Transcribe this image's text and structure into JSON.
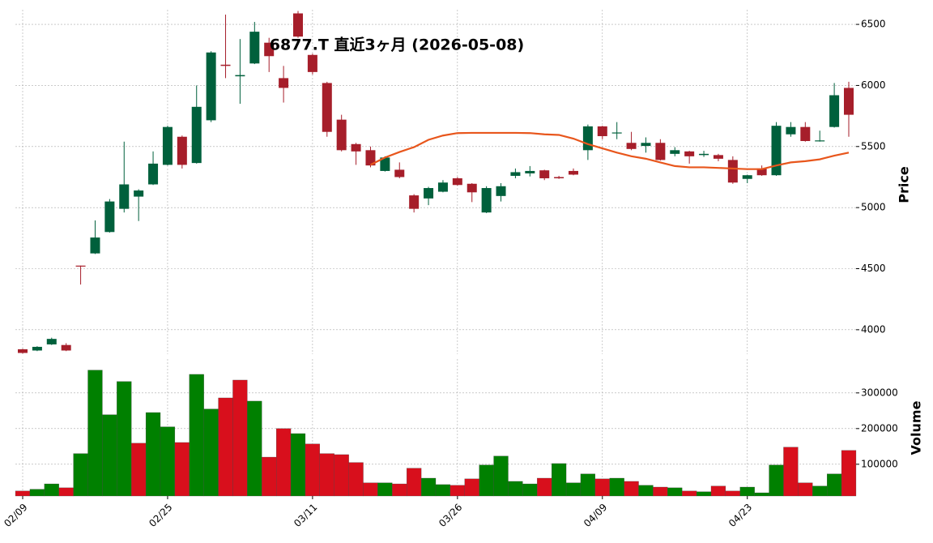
{
  "chart_data": [
    {
      "type": "candlestick",
      "title": "6877.T 直近3ヶ月 (2026-05-08)",
      "ylabel": "Price",
      "categories": [
        "02/09",
        null,
        null,
        null,
        null,
        null,
        null,
        null,
        null,
        null,
        "02/25",
        null,
        null,
        null,
        null,
        null,
        null,
        null,
        null,
        null,
        "03/11",
        null,
        null,
        null,
        null,
        null,
        null,
        null,
        null,
        null,
        "03/26",
        null,
        null,
        null,
        null,
        null,
        null,
        null,
        null,
        null,
        "04/09",
        null,
        null,
        null,
        null,
        null,
        null,
        null,
        null,
        null,
        "04/23",
        null,
        null,
        null,
        null,
        null,
        null,
        null
      ],
      "open": [
        3840,
        3830,
        3880,
        3875,
        4525,
        4625,
        4800,
        4990,
        5090,
        5190,
        5350,
        5580,
        5365,
        5715,
        6170,
        6075,
        6180,
        6350,
        6060,
        6590,
        6250,
        6020,
        5720,
        5520,
        5470,
        5300,
        5310,
        5100,
        5075,
        5130,
        5240,
        5195,
        4960,
        5095,
        5260,
        5280,
        5305,
        5250,
        5300,
        5470,
        5665,
        5610,
        5530,
        5505,
        5530,
        5440,
        5460,
        5430,
        5430,
        5390,
        5235,
        5320,
        5265,
        5600,
        5660,
        5545,
        5660,
        5980
      ],
      "high": [
        3845,
        3865,
        3935,
        3890,
        4525,
        4895,
        5070,
        5540,
        5150,
        5460,
        5670,
        5590,
        6000,
        6280,
        6580,
        6380,
        6520,
        6390,
        6160,
        6610,
        6260,
        6030,
        5760,
        5530,
        5500,
        5420,
        5370,
        5110,
        5170,
        5225,
        5250,
        5200,
        5175,
        5200,
        5320,
        5340,
        5310,
        5260,
        5320,
        5680,
        5670,
        5700,
        5620,
        5575,
        5560,
        5495,
        5465,
        5465,
        5440,
        5420,
        5270,
        5345,
        5700,
        5700,
        5700,
        5630,
        6020,
        6030
      ],
      "low": [
        3805,
        3825,
        3875,
        3825,
        4370,
        4620,
        4795,
        4960,
        4890,
        5185,
        5345,
        5320,
        5360,
        5700,
        6060,
        5850,
        6175,
        6110,
        5860,
        6390,
        6090,
        5580,
        5460,
        5350,
        5330,
        5295,
        5240,
        4960,
        5020,
        5125,
        5180,
        5045,
        4955,
        5050,
        5240,
        5255,
        5225,
        5235,
        5265,
        5390,
        5560,
        5560,
        5470,
        5450,
        5385,
        5420,
        5360,
        5415,
        5380,
        5195,
        5200,
        5260,
        5260,
        5580,
        5540,
        5540,
        5655,
        5580
      ],
      "close": [
        3810,
        3860,
        3925,
        3830,
        4520,
        4755,
        5050,
        5190,
        5140,
        5360,
        5660,
        5350,
        5825,
        6270,
        6160,
        6085,
        6440,
        6240,
        5980,
        6400,
        6110,
        5620,
        5470,
        5460,
        5345,
        5410,
        5250,
        4990,
        5160,
        5205,
        5185,
        5125,
        5160,
        5175,
        5290,
        5300,
        5240,
        5240,
        5270,
        5665,
        5585,
        5615,
        5480,
        5530,
        5390,
        5470,
        5420,
        5440,
        5400,
        5205,
        5265,
        5265,
        5670,
        5660,
        5545,
        5550,
        5920,
        5760
      ],
      "up_color": "#00603c",
      "down_color": "#a61e2a",
      "lines": [
        {
          "color": "#e8561c",
          "values": [
            null,
            null,
            null,
            null,
            null,
            null,
            null,
            null,
            null,
            null,
            null,
            null,
            null,
            null,
            null,
            null,
            null,
            null,
            null,
            null,
            null,
            null,
            null,
            null,
            5350,
            5410,
            5455,
            5495,
            5555,
            5590,
            5610,
            5612,
            5612,
            5612,
            5612,
            5610,
            5600,
            5595,
            5565,
            5520,
            5485,
            5450,
            5420,
            5400,
            5370,
            5340,
            5330,
            5330,
            5325,
            5320,
            5315,
            5315,
            5345,
            5370,
            5380,
            5395,
            5425,
            5450
          ]
        }
      ],
      "ylim": [
        3800,
        6620
      ],
      "yticks": [
        4000,
        4500,
        5000,
        5500,
        6000,
        6500
      ],
      "grid": true
    },
    {
      "type": "bar",
      "ylabel": "Volume",
      "values": [
        25000,
        30000,
        45000,
        34000,
        130000,
        364000,
        239000,
        332000,
        159000,
        245000,
        205000,
        161000,
        352000,
        255000,
        286000,
        336000,
        277000,
        120000,
        200000,
        186000,
        157000,
        130000,
        127000,
        105000,
        48000,
        48000,
        45000,
        89000,
        61000,
        43000,
        41000,
        59000,
        98000,
        123000,
        52000,
        45000,
        61000,
        102000,
        48000,
        73000,
        59000,
        61000,
        52000,
        41000,
        36000,
        34000,
        25000,
        23000,
        39000,
        25000,
        36000,
        20000,
        98000,
        148000,
        48000,
        39000,
        73000,
        139000
      ],
      "up_color": "#008000",
      "down_color": "#d80f1c",
      "ylim": [
        11000,
        395000
      ],
      "yticks": [
        100000,
        200000,
        300000
      ],
      "grid": true
    }
  ]
}
